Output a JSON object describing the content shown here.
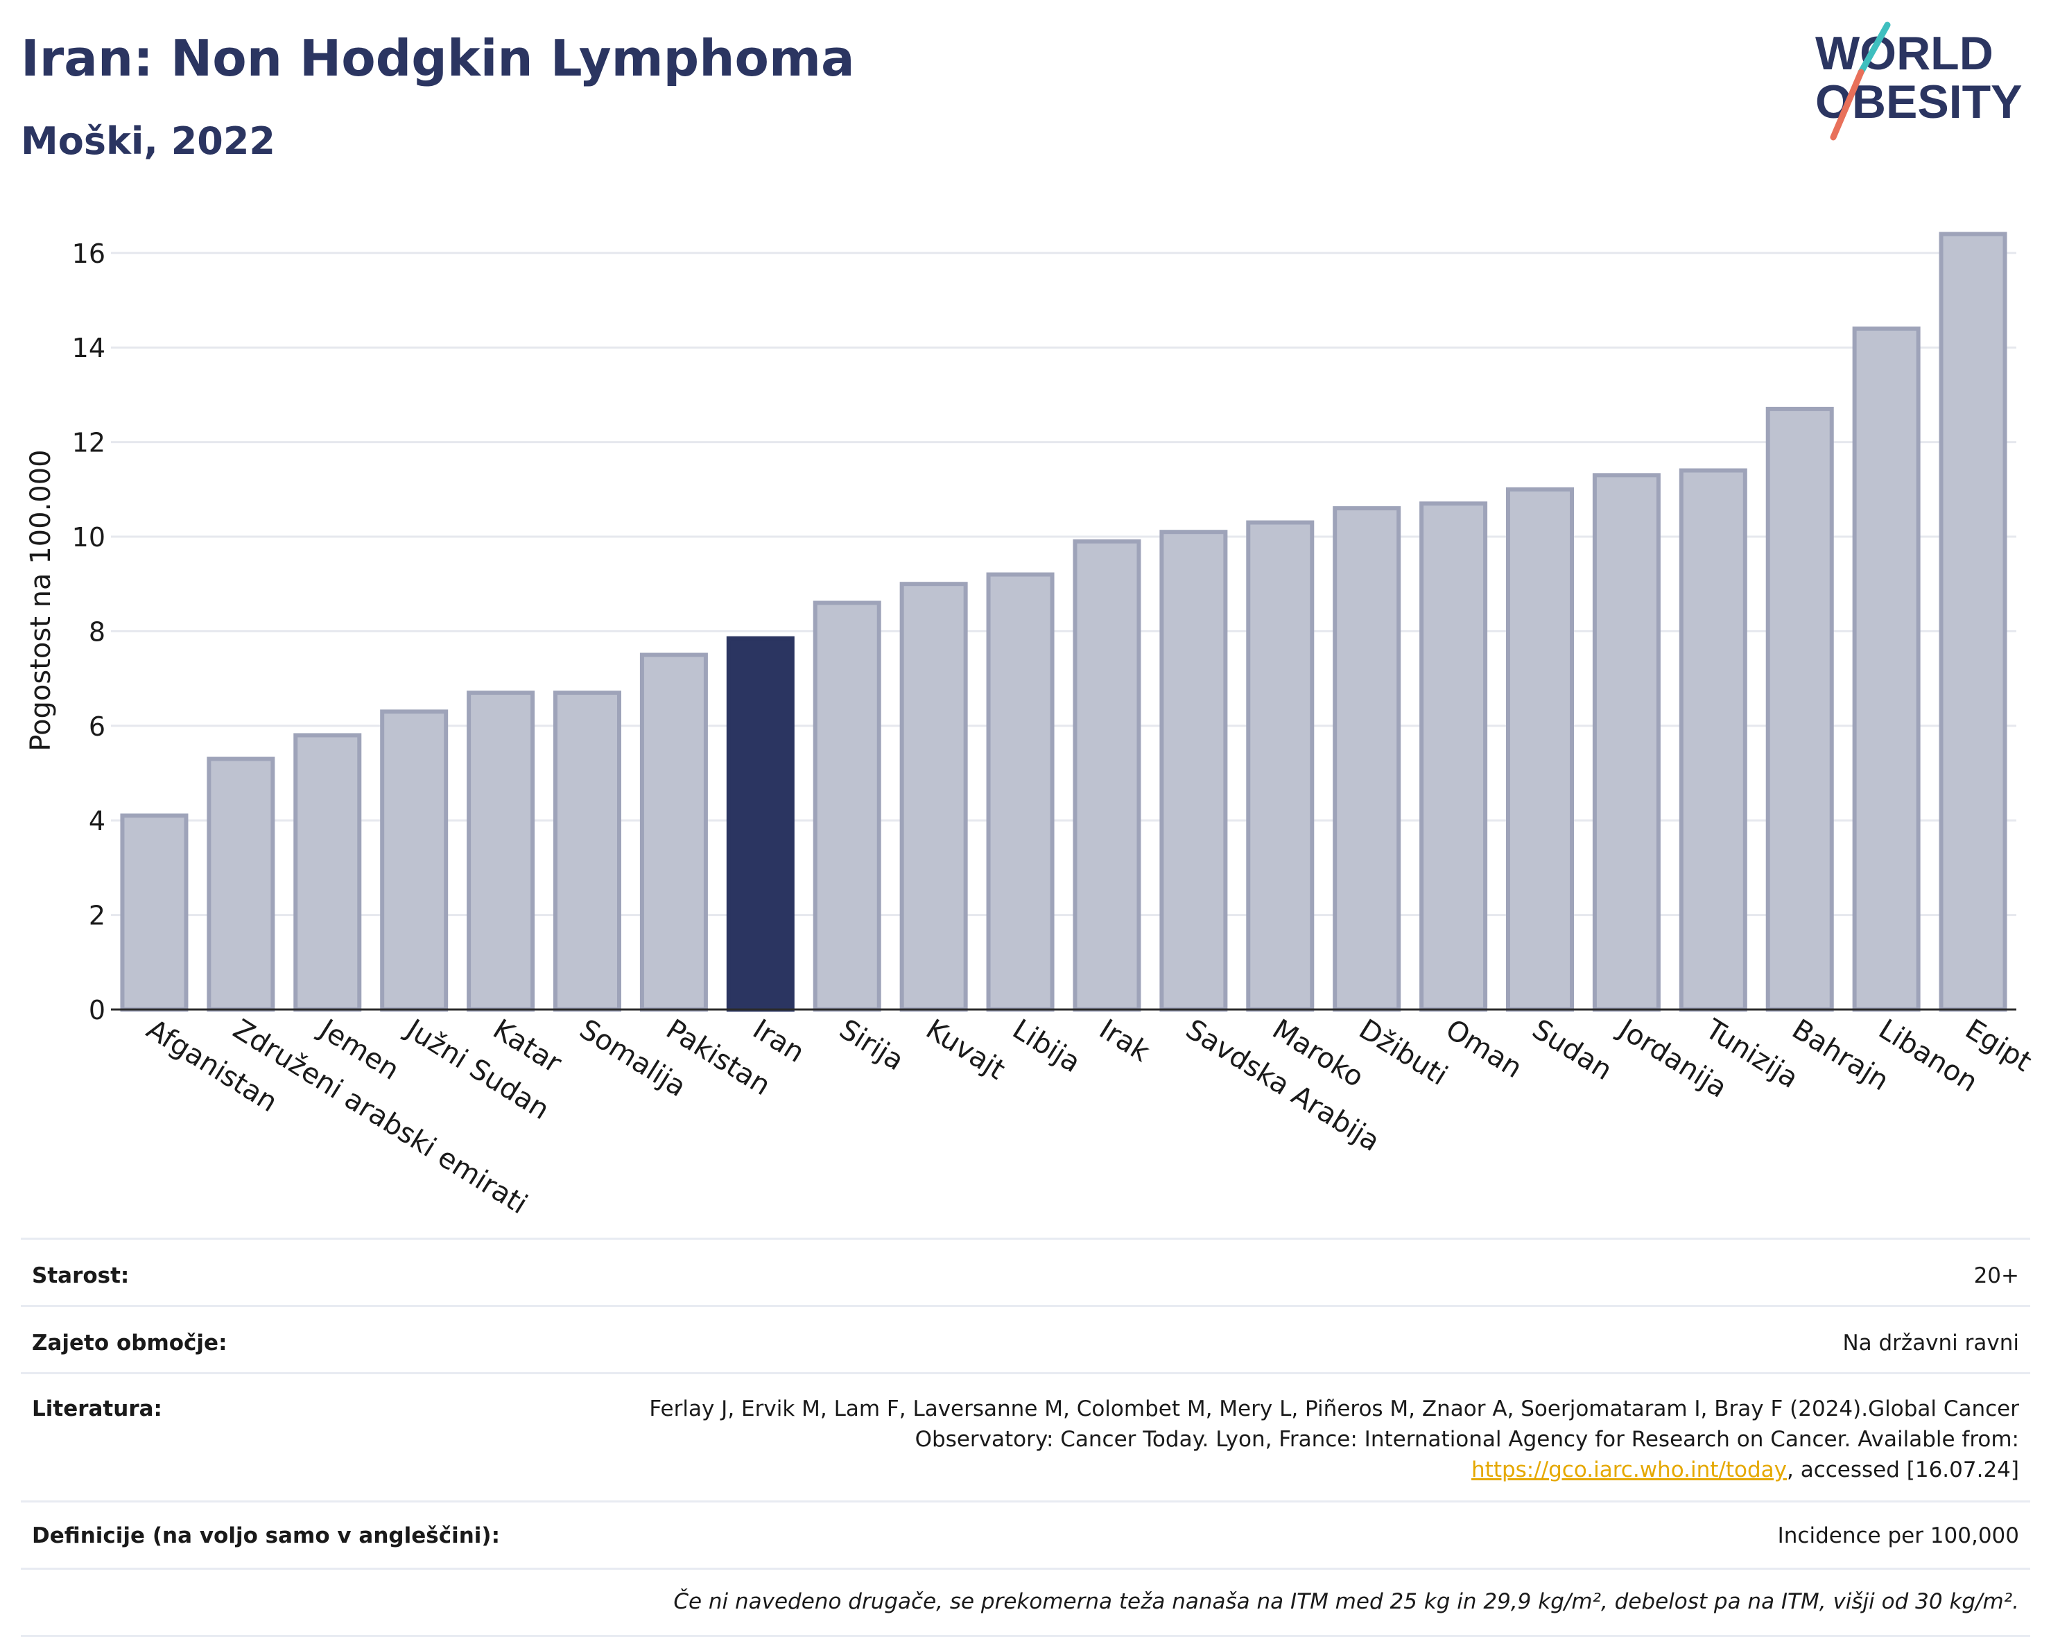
{
  "header": {
    "title": "Iran: Non Hodgkin Lymphoma",
    "subtitle": "Moški, 2022"
  },
  "logo": {
    "line1": "WORLD",
    "line2": "OBESITY",
    "accent_colors": [
      "#3fbfbf",
      "#e8705a"
    ]
  },
  "colors": {
    "bar": "#bec2d0",
    "bar_edge": "#9ea3b9",
    "highlight": "#2b3561",
    "grid": "#e6e8ee",
    "title": "#2b3561"
  },
  "chart_data": {
    "type": "bar",
    "title": "Iran: Non Hodgkin Lymphoma",
    "subtitle": "Moški, 2022",
    "ylabel": "Pogostost na 100.000",
    "xlabel": "",
    "ylim": [
      0,
      17
    ],
    "yticks": [
      0,
      2,
      4,
      6,
      8,
      10,
      12,
      14,
      16
    ],
    "grid": true,
    "highlight": "Iran",
    "categories": [
      "Afganistan",
      "Združeni arabski emirati",
      "Jemen",
      "Južni Sudan",
      "Katar",
      "Somalija",
      "Pakistan",
      "Iran",
      "Sirija",
      "Kuvajt",
      "Libija",
      "Irak",
      "Savdska Arabija",
      "Maroko",
      "Džibuti",
      "Oman",
      "Sudan",
      "Jordanija",
      "Tunizija",
      "Bahrajn",
      "Libanon",
      "Egipt"
    ],
    "values": [
      4.1,
      5.3,
      5.8,
      6.3,
      6.7,
      6.7,
      7.5,
      7.85,
      8.6,
      9.0,
      9.2,
      9.9,
      10.1,
      10.3,
      10.6,
      10.7,
      11.0,
      11.3,
      11.4,
      12.7,
      14.4,
      16.4
    ]
  },
  "meta": {
    "age_label": "Starost:",
    "age_value": "20+",
    "coverage_label": "Zajeto območje:",
    "coverage_value": "Na državni ravni",
    "lit_label": "Literatura:",
    "lit_text1": "Ferlay J, Ervik M, Lam F, Laversanne M, Colombet M, Mery L, Piñeros M, Znaor A, Soerjomataram I, Bray F (2024).Global Cancer Observatory: Cancer Today. Lyon, France: International Agency for Research on Cancer. Available from: ",
    "lit_link": "https://gco.iarc.who.int/today",
    "lit_text2": ", accessed [16.07.24]",
    "def_label": "Definicije (na voljo samo v angleščini):",
    "def_value": "Incidence per 100,000",
    "note": "Če ni navedeno drugače, se prekomerna teža nanaša na ITM med 25 kg in 29,9 kg/m², debelost pa na ITM, višji od 30 kg/m²."
  }
}
